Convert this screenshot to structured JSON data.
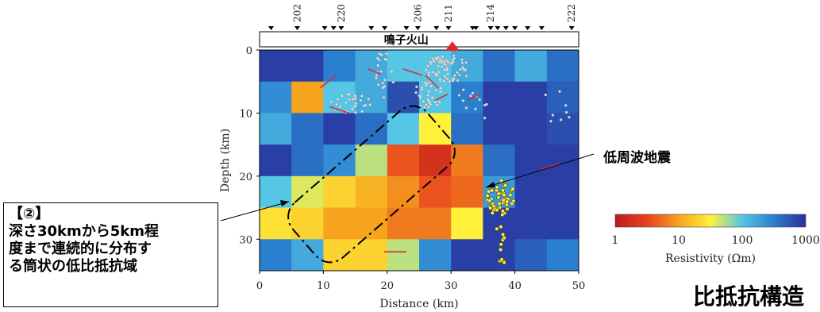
{
  "chart_data": {
    "type": "heatmap",
    "title": "比抵抗構造",
    "volcano_label": "鳴子火山",
    "xlabel": "Distance (km)",
    "ylabel": "Depth (km)",
    "xlim": [
      0,
      50
    ],
    "ylim": [
      0,
      35
    ],
    "x_ticks": [
      "0",
      "10",
      "20",
      "30",
      "40",
      "50"
    ],
    "y_ticks": [
      "0",
      "10",
      "20",
      "30"
    ],
    "stations": [
      {
        "x": 1.8,
        "label": ""
      },
      {
        "x": 5.9,
        "label": "202"
      },
      {
        "x": 10.2,
        "label": ""
      },
      {
        "x": 11.6,
        "label": ""
      },
      {
        "x": 12.8,
        "label": "220"
      },
      {
        "x": 17.5,
        "label": ""
      },
      {
        "x": 19.6,
        "label": ""
      },
      {
        "x": 23.0,
        "label": ""
      },
      {
        "x": 24.8,
        "label": "206"
      },
      {
        "x": 27.7,
        "label": ""
      },
      {
        "x": 29.6,
        "label": "211"
      },
      {
        "x": 33.4,
        "label": ""
      },
      {
        "x": 33.9,
        "label": ""
      },
      {
        "x": 36.2,
        "label": "214"
      },
      {
        "x": 37.3,
        "label": ""
      },
      {
        "x": 38.6,
        "label": ""
      },
      {
        "x": 40.0,
        "label": ""
      },
      {
        "x": 42.0,
        "label": ""
      },
      {
        "x": 44.2,
        "label": ""
      },
      {
        "x": 48.9,
        "label": "222"
      }
    ],
    "volcano_x": 30.2,
    "colorbar": {
      "label": "Resistivity (Ωm)",
      "ticks": [
        "1",
        "10",
        "100",
        "1000"
      ],
      "scale": "log",
      "range": [
        1,
        1000
      ],
      "colors": [
        "#b81e1e",
        "#e8401e",
        "#f6a31e",
        "#fff13a",
        "#55c6e6",
        "#2a7fcf",
        "#2a2f9a"
      ]
    },
    "low_frequency_label": "低周波地震",
    "annotation": {
      "lines": [
        "【②】",
        "深さ30kmから5km程",
        "度まで連続的に分布す",
        "る筒状の低比抵抗域"
      ]
    },
    "grid_x_edges": [
      0,
      5,
      10,
      15,
      20,
      25,
      30,
      35,
      40,
      45,
      50
    ],
    "grid_y_edges": [
      0,
      5,
      10,
      15,
      20,
      25,
      30,
      35
    ],
    "log10_resistivity": [
      [
        2.9,
        2.9,
        2.5,
        2.2,
        2.0,
        2.0,
        2.2,
        2.6,
        2.2,
        2.6
      ],
      [
        2.4,
        1.0,
        2.0,
        2.2,
        2.8,
        2.0,
        2.5,
        2.9,
        2.9,
        2.7
      ],
      [
        2.2,
        2.6,
        2.9,
        2.6,
        2.0,
        1.5,
        2.6,
        2.9,
        2.9,
        2.8
      ],
      [
        2.9,
        2.6,
        2.4,
        1.7,
        0.6,
        0.3,
        0.8,
        2.6,
        2.9,
        2.9
      ],
      [
        2.0,
        1.6,
        1.3,
        1.1,
        0.9,
        0.6,
        0.7,
        2.3,
        2.9,
        2.9
      ],
      [
        1.4,
        1.3,
        1.0,
        1.0,
        0.8,
        0.8,
        1.5,
        2.9,
        2.9,
        2.9
      ],
      [
        2.5,
        2.2,
        1.3,
        1.3,
        1.7,
        2.4,
        2.9,
        2.9,
        2.7,
        2.5
      ]
    ],
    "low_frequency_eq_region": {
      "x_range": [
        35.5,
        40.5
      ],
      "y_range": [
        20,
        35
      ]
    }
  }
}
